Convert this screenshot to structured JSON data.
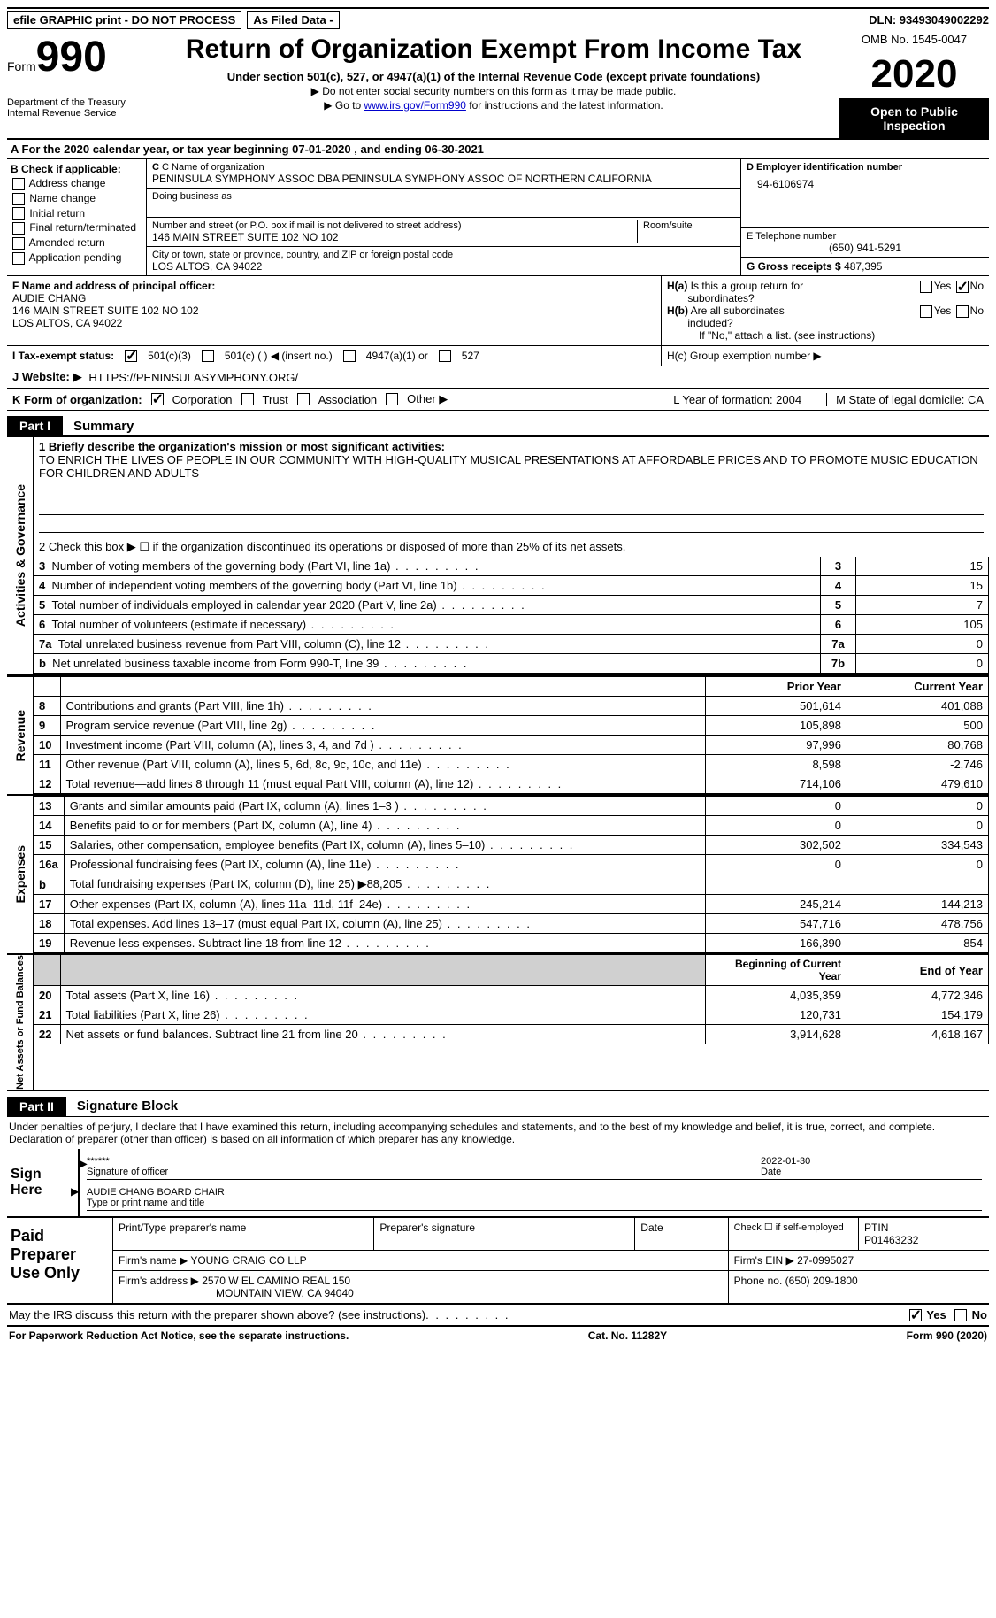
{
  "top": {
    "efile": "efile GRAPHIC print - DO NOT PROCESS",
    "asFiled": "As Filed Data -",
    "dln": "DLN: 93493049002292"
  },
  "header": {
    "formWord": "Form",
    "formNum": "990",
    "dept": "Department of the Treasury\nInternal Revenue Service",
    "title": "Return of Organization Exempt From Income Tax",
    "sub1": "Under section 501(c), 527, or 4947(a)(1) of the Internal Revenue Code (except private foundations)",
    "sub2": "▶ Do not enter social security numbers on this form as it may be made public.",
    "sub3a": "▶ Go to ",
    "sub3link": "www.irs.gov/Form990",
    "sub3b": " for instructions and the latest information.",
    "omb": "OMB No. 1545-0047",
    "year": "2020",
    "open": "Open to Public Inspection"
  },
  "rowA": "A   For the 2020 calendar year, or tax year beginning 07-01-2020   , and ending 06-30-2021",
  "colB": {
    "hdr": "B Check if applicable:",
    "items": [
      "Address change",
      "Name change",
      "Initial return",
      "Final return/terminated",
      "Amended return",
      "Application pending"
    ]
  },
  "colC": {
    "nameLbl": "C Name of organization",
    "name": "PENINSULA SYMPHONY ASSOC DBA PENINSULA SYMPHONY ASSOC OF NORTHERN CALIFORNIA",
    "dbaLbl": "Doing business as",
    "addrLbl": "Number and street (or P.O. box if mail is not delivered to street address)",
    "addr": "146 MAIN STREET SUITE 102 NO 102",
    "roomLbl": "Room/suite",
    "cityLbl": "City or town, state or province, country, and ZIP or foreign postal code",
    "city": "LOS ALTOS, CA  94022"
  },
  "colD": {
    "einLbl": "D Employer identification number",
    "ein": "94-6106974",
    "telLbl": "E Telephone number",
    "tel": "(650) 941-5291",
    "grossLbl": "G Gross receipts $",
    "gross": "487,395"
  },
  "rowF": {
    "lbl": "F  Name and address of principal officer:",
    "name": "AUDIE CHANG",
    "addr1": "146 MAIN STREET SUITE 102 NO 102",
    "addr2": "LOS ALTOS, CA  94022"
  },
  "rowH": {
    "ha": "H(a)  Is this a group return for subordinates?",
    "hb": "H(b)  Are all subordinates included?",
    "hbNote": "If \"No,\" attach a list. (see instructions)",
    "hc": "H(c)  Group exemption number ▶",
    "yes": "Yes",
    "no": "No"
  },
  "rowI": {
    "lbl": "I   Tax-exempt status:",
    "o1": "501(c)(3)",
    "o2": "501(c) (   ) ◀ (insert no.)",
    "o3": "4947(a)(1) or",
    "o4": "527"
  },
  "rowJ": {
    "lbl": "J   Website: ▶",
    "val": "HTTPS://PENINSULASYMPHONY.ORG/"
  },
  "rowK": {
    "lbl": "K Form of organization:",
    "o1": "Corporation",
    "o2": "Trust",
    "o3": "Association",
    "o4": "Other ▶"
  },
  "rowL": {
    "l": "L Year of formation: 2004",
    "m": "M State of legal domicile: CA"
  },
  "part1": {
    "label": "Part I",
    "title": "Summary"
  },
  "summary": {
    "vtab1": "Activities & Governance",
    "line1lbl": "1 Briefly describe the organization's mission or most significant activities:",
    "line1val": "TO ENRICH THE LIVES OF PEOPLE IN OUR COMMUNITY WITH HIGH-QUALITY MUSICAL PRESENTATIONS AT AFFORDABLE PRICES AND TO PROMOTE MUSIC EDUCATION FOR CHILDREN AND ADULTS",
    "line2": "2   Check this box ▶ ☐ if the organization discontinued its operations or disposed of more than 25% of its net assets.",
    "rows": [
      {
        "n": "3",
        "d": "Number of voting members of the governing body (Part VI, line 1a)",
        "c": "3",
        "v": "15"
      },
      {
        "n": "4",
        "d": "Number of independent voting members of the governing body (Part VI, line 1b)",
        "c": "4",
        "v": "15"
      },
      {
        "n": "5",
        "d": "Total number of individuals employed in calendar year 2020 (Part V, line 2a)",
        "c": "5",
        "v": "7"
      },
      {
        "n": "6",
        "d": "Total number of volunteers (estimate if necessary)",
        "c": "6",
        "v": "105"
      },
      {
        "n": "7a",
        "d": "Total unrelated business revenue from Part VIII, column (C), line 12",
        "c": "7a",
        "v": "0"
      },
      {
        "n": "b",
        "d": "Net unrelated business taxable income from Form 990-T, line 39",
        "c": "7b",
        "v": "0"
      }
    ]
  },
  "revenue": {
    "vtab": "Revenue",
    "hdr1": "Prior Year",
    "hdr2": "Current Year",
    "rows": [
      {
        "n": "8",
        "d": "Contributions and grants (Part VIII, line 1h)",
        "v1": "501,614",
        "v2": "401,088"
      },
      {
        "n": "9",
        "d": "Program service revenue (Part VIII, line 2g)",
        "v1": "105,898",
        "v2": "500"
      },
      {
        "n": "10",
        "d": "Investment income (Part VIII, column (A), lines 3, 4, and 7d )",
        "v1": "97,996",
        "v2": "80,768"
      },
      {
        "n": "11",
        "d": "Other revenue (Part VIII, column (A), lines 5, 6d, 8c, 9c, 10c, and 11e)",
        "v1": "8,598",
        "v2": "-2,746"
      },
      {
        "n": "12",
        "d": "Total revenue—add lines 8 through 11 (must equal Part VIII, column (A), line 12)",
        "v1": "714,106",
        "v2": "479,610"
      }
    ]
  },
  "expenses": {
    "vtab": "Expenses",
    "rows": [
      {
        "n": "13",
        "d": "Grants and similar amounts paid (Part IX, column (A), lines 1–3 )",
        "v1": "0",
        "v2": "0"
      },
      {
        "n": "14",
        "d": "Benefits paid to or for members (Part IX, column (A), line 4)",
        "v1": "0",
        "v2": "0"
      },
      {
        "n": "15",
        "d": "Salaries, other compensation, employee benefits (Part IX, column (A), lines 5–10)",
        "v1": "302,502",
        "v2": "334,543"
      },
      {
        "n": "16a",
        "d": "Professional fundraising fees (Part IX, column (A), line 11e)",
        "v1": "0",
        "v2": "0"
      },
      {
        "n": "b",
        "d": "Total fundraising expenses (Part IX, column (D), line 25) ▶88,205",
        "v1": "",
        "v2": "",
        "shade": true
      },
      {
        "n": "17",
        "d": "Other expenses (Part IX, column (A), lines 11a–11d, 11f–24e)",
        "v1": "245,214",
        "v2": "144,213"
      },
      {
        "n": "18",
        "d": "Total expenses. Add lines 13–17 (must equal Part IX, column (A), line 25)",
        "v1": "547,716",
        "v2": "478,756"
      },
      {
        "n": "19",
        "d": "Revenue less expenses. Subtract line 18 from line 12",
        "v1": "166,390",
        "v2": "854"
      }
    ]
  },
  "netassets": {
    "vtab": "Net Assets or Fund Balances",
    "hdr1": "Beginning of Current Year",
    "hdr2": "End of Year",
    "rows": [
      {
        "n": "20",
        "d": "Total assets (Part X, line 16)",
        "v1": "4,035,359",
        "v2": "4,772,346"
      },
      {
        "n": "21",
        "d": "Total liabilities (Part X, line 26)",
        "v1": "120,731",
        "v2": "154,179"
      },
      {
        "n": "22",
        "d": "Net assets or fund balances. Subtract line 21 from line 20",
        "v1": "3,914,628",
        "v2": "4,618,167"
      }
    ]
  },
  "part2": {
    "label": "Part II",
    "title": "Signature Block"
  },
  "sig": {
    "perjury": "Under penalties of perjury, I declare that I have examined this return, including accompanying schedules and statements, and to the best of my knowledge and belief, it is true, correct, and complete. Declaration of preparer (other than officer) is based on all information of which preparer has any knowledge.",
    "signHere": "Sign Here",
    "stars": "******",
    "sigOfficer": "Signature of officer",
    "date": "2022-01-30",
    "dateLbl": "Date",
    "name": "AUDIE CHANG BOARD CHAIR",
    "nameLbl": "Type or print name and title"
  },
  "prep": {
    "label": "Paid Preparer Use Only",
    "h1": "Print/Type preparer's name",
    "h2": "Preparer's signature",
    "h3": "Date",
    "h4a": "Check ☐ if self-employed",
    "h4b": "PTIN",
    "ptin": "P01463232",
    "firmNameLbl": "Firm's name    ▶",
    "firmName": "YOUNG CRAIG CO LLP",
    "firmEinLbl": "Firm's EIN ▶",
    "firmEin": "27-0995027",
    "firmAddrLbl": "Firm's address ▶",
    "firmAddr1": "2570 W EL CAMINO REAL 150",
    "firmAddr2": "MOUNTAIN VIEW, CA  94040",
    "phoneLbl": "Phone no.",
    "phone": "(650) 209-1800"
  },
  "bottom": {
    "q": "May the IRS discuss this return with the preparer shown above? (see instructions)",
    "yes": "Yes",
    "no": "No"
  },
  "footer": {
    "l": "For Paperwork Reduction Act Notice, see the separate instructions.",
    "c": "Cat. No. 11282Y",
    "r": "Form 990 (2020)"
  }
}
